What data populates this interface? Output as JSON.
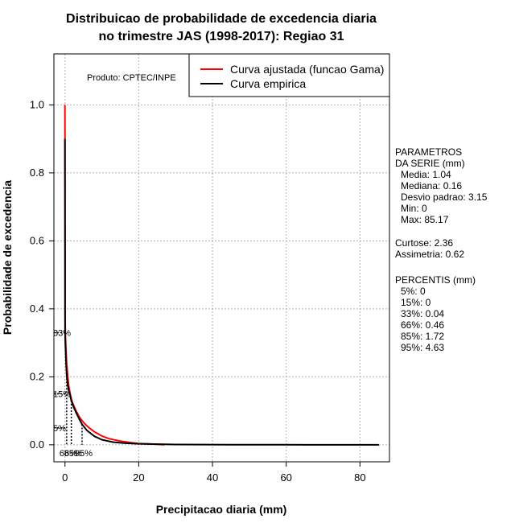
{
  "chart_data": {
    "type": "line",
    "title_line1": "Distribuicao de probabilidade de excedencia diaria",
    "title_line2": "no trimestre JAS (1998-2017): Regiao 31",
    "xlabel": "Precipitacao diaria (mm)",
    "ylabel": "Probabilidade de excedencia",
    "xlim": [
      -3,
      88
    ],
    "ylim": [
      -0.05,
      1.15
    ],
    "xticks": [
      0,
      20,
      40,
      60,
      80
    ],
    "yticks": [
      0.0,
      0.2,
      0.4,
      0.6,
      0.8,
      1.0
    ],
    "xtick_labels": [
      "0",
      "20",
      "40",
      "60",
      "80"
    ],
    "ytick_labels": [
      "0.0",
      "0.2",
      "0.4",
      "0.6",
      "0.8",
      "1.0"
    ],
    "grid": true,
    "legend_position": "top-right",
    "producer": "Produto: CPTEC/INPE",
    "series": [
      {
        "name": "Curva ajustada (funcao Gama)",
        "color": "#ff0000",
        "x": [
          0.0,
          0.05,
          0.1,
          0.2,
          0.35,
          0.5,
          0.75,
          1.0,
          1.5,
          2.0,
          3.0,
          4.0,
          5.0,
          6.0,
          8.0,
          10.0,
          12.0,
          15.0,
          18.0,
          20.0,
          22.0,
          25.0,
          27.0
        ],
        "y": [
          1.0,
          0.36,
          0.33,
          0.295,
          0.26,
          0.235,
          0.2,
          0.175,
          0.145,
          0.125,
          0.1,
          0.08,
          0.066,
          0.055,
          0.038,
          0.026,
          0.018,
          0.011,
          0.006,
          0.004,
          0.003,
          0.0015,
          0.0
        ]
      },
      {
        "name": "Curva empirica",
        "color": "#000000",
        "x": [
          0.0,
          0.001,
          0.02,
          0.04,
          0.1,
          0.2,
          0.3,
          0.46,
          0.7,
          1.0,
          1.3,
          1.72,
          2.2,
          3.0,
          4.0,
          4.63,
          6.0,
          8.0,
          10.0,
          13.0,
          16.0,
          20.0,
          30.0,
          45.0,
          60.0,
          85.17
        ],
        "y": [
          0.9,
          0.56,
          0.4,
          0.33,
          0.3,
          0.27,
          0.24,
          0.205,
          0.18,
          0.16,
          0.15,
          0.13,
          0.115,
          0.095,
          0.073,
          0.06,
          0.042,
          0.025,
          0.015,
          0.008,
          0.005,
          0.003,
          0.001,
          0.0005,
          0.0002,
          0.0
        ]
      }
    ],
    "percentile_markers": [
      {
        "label": "33%",
        "x": 0.04,
        "y": 0.33
      },
      {
        "label": "15%",
        "x": 0.0,
        "y": 0.15
      },
      {
        "label": "5%",
        "x": 0.0,
        "y": 0.05
      },
      {
        "label": "66%",
        "x": 0.46,
        "y": 0.0
      },
      {
        "label": "85%",
        "x": 1.72,
        "y": 0.0
      },
      {
        "label": "95%",
        "x": 4.63,
        "y": 0.0
      }
    ]
  },
  "stats": {
    "header1": "PARAMETROS",
    "header2": "DA SERIE (mm)",
    "media": "Media: 1.04",
    "mediana": "Mediana: 0.16",
    "desvio": "Desvio padrao: 3.15",
    "min": "Min: 0",
    "max": "Max: 85.17",
    "curtose": "Curtose: 2.36",
    "assimetria": "Assimetria: 0.62",
    "percentis_header": "PERCENTIS (mm)",
    "p5": "5%: 0",
    "p15": "15%: 0",
    "p33": "33%: 0.04",
    "p66": "66%: 0.46",
    "p85": "85%: 1.72",
    "p95": "95%: 4.63"
  }
}
